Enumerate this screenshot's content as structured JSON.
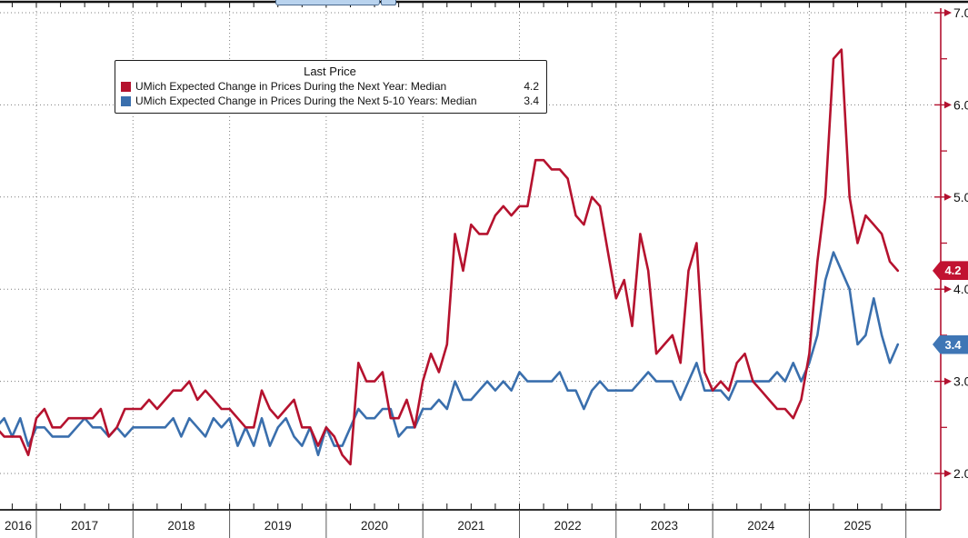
{
  "chart_data": {
    "type": "line",
    "title": "",
    "frequency": "monthly",
    "start": {
      "year": 2016,
      "month": 7
    },
    "legend": {
      "title": "Last Price",
      "entries": [
        {
          "label": "UMich Expected Change in Prices During the Next Year: Median",
          "value": "4.2",
          "color": "#b5122e"
        },
        {
          "label": "UMich Expected Change in Prices During the Next 5-10 Years: Median",
          "value": "3.4",
          "color": "#3a6fad"
        }
      ]
    },
    "x_axis": {
      "year_labels": [
        "2016",
        "2017",
        "2018",
        "2019",
        "2020",
        "2021",
        "2022",
        "2023",
        "2024",
        "2025"
      ],
      "minor_tick": "quarterly"
    },
    "y_axis": {
      "side": "right",
      "ticks": [
        {
          "value": 2.0,
          "label": "2.0"
        },
        {
          "value": 3.0,
          "label": "3.0"
        },
        {
          "value": 4.0,
          "label": "4.0"
        },
        {
          "value": 5.0,
          "label": "5.0"
        },
        {
          "value": 6.0,
          "label": "6.0"
        },
        {
          "value": 7.0,
          "label": "7.0"
        }
      ],
      "minor_tick_values": [
        2.5,
        3.5,
        4.5,
        5.5,
        6.5
      ],
      "range": [
        1.6,
        7.1
      ]
    },
    "grid": {
      "horizontal": true,
      "vertical": true,
      "style": "dotted"
    },
    "series": [
      {
        "name": "UMich Expected Change in Prices During the Next Year: Median",
        "color": "#b5122e",
        "last_price": 4.2,
        "values": [
          2.7,
          2.5,
          2.4,
          2.4,
          2.4,
          2.2,
          2.6,
          2.7,
          2.5,
          2.5,
          2.6,
          2.6,
          2.6,
          2.6,
          2.7,
          2.4,
          2.5,
          2.7,
          2.7,
          2.7,
          2.8,
          2.7,
          2.8,
          2.9,
          2.9,
          3.0,
          2.8,
          2.9,
          2.8,
          2.7,
          2.7,
          2.6,
          2.5,
          2.5,
          2.9,
          2.7,
          2.6,
          2.7,
          2.8,
          2.5,
          2.5,
          2.3,
          2.5,
          2.4,
          2.2,
          2.1,
          3.2,
          3.0,
          3.0,
          3.1,
          2.6,
          2.6,
          2.8,
          2.5,
          3.0,
          3.3,
          3.1,
          3.4,
          4.6,
          4.2,
          4.7,
          4.6,
          4.6,
          4.8,
          4.9,
          4.8,
          4.9,
          4.9,
          5.4,
          5.4,
          5.3,
          5.3,
          5.2,
          4.8,
          4.7,
          5.0,
          4.9,
          4.4,
          3.9,
          4.1,
          3.6,
          4.6,
          4.2,
          3.3,
          3.4,
          3.5,
          3.2,
          4.2,
          4.5,
          3.1,
          2.9,
          3.0,
          2.9,
          3.2,
          3.3,
          3.0,
          2.9,
          2.8,
          2.7,
          2.7,
          2.6,
          2.8,
          3.3,
          4.3,
          5.0,
          6.5,
          6.6,
          5.0,
          4.5,
          4.8,
          4.7,
          4.6,
          4.3,
          4.2
        ]
      },
      {
        "name": "UMich Expected Change in Prices During the Next 5-10 Years: Median",
        "color": "#3a6fad",
        "last_price": 3.4,
        "values": [
          2.6,
          2.5,
          2.6,
          2.4,
          2.6,
          2.3,
          2.5,
          2.5,
          2.4,
          2.4,
          2.4,
          2.5,
          2.6,
          2.5,
          2.5,
          2.4,
          2.5,
          2.4,
          2.5,
          2.5,
          2.5,
          2.5,
          2.5,
          2.6,
          2.4,
          2.6,
          2.5,
          2.4,
          2.6,
          2.5,
          2.6,
          2.3,
          2.5,
          2.3,
          2.6,
          2.3,
          2.5,
          2.6,
          2.4,
          2.3,
          2.5,
          2.2,
          2.5,
          2.3,
          2.3,
          2.5,
          2.7,
          2.6,
          2.6,
          2.7,
          2.7,
          2.4,
          2.5,
          2.5,
          2.7,
          2.7,
          2.8,
          2.7,
          3.0,
          2.8,
          2.8,
          2.9,
          3.0,
          2.9,
          3.0,
          2.9,
          3.1,
          3.0,
          3.0,
          3.0,
          3.0,
          3.1,
          2.9,
          2.9,
          2.7,
          2.9,
          3.0,
          2.9,
          2.9,
          2.9,
          2.9,
          3.0,
          3.1,
          3.0,
          3.0,
          3.0,
          2.8,
          3.0,
          3.2,
          2.9,
          2.9,
          2.9,
          2.8,
          3.0,
          3.0,
          3.0,
          3.0,
          3.0,
          3.1,
          3.0,
          3.2,
          3.0,
          3.2,
          3.5,
          4.1,
          4.4,
          4.2,
          4.0,
          3.4,
          3.5,
          3.9,
          3.5,
          3.2,
          3.4
        ]
      }
    ],
    "badges": [
      {
        "value": "4.2",
        "numeric": 4.2,
        "color": "#c11231"
      },
      {
        "value": "3.4",
        "numeric": 3.4,
        "color": "#3f76b5"
      }
    ],
    "colors": {
      "axis_red": "#b31230",
      "grid": "#7f7f7f",
      "frame": "#141414",
      "text": "#1a1a1a",
      "year_separator": "#5a5a5a"
    }
  }
}
